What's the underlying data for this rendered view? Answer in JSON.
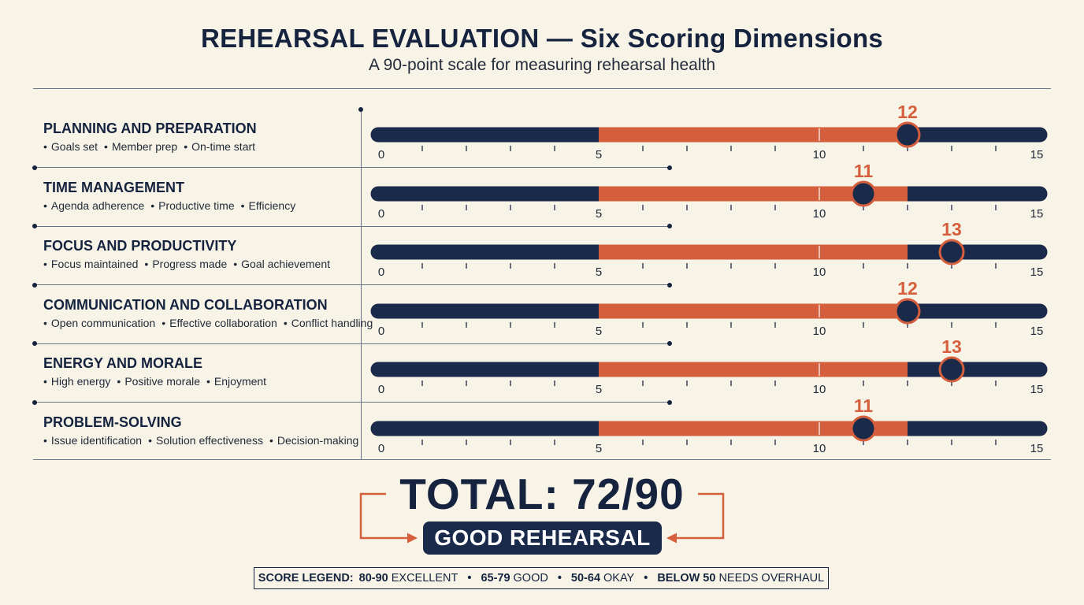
{
  "header": {
    "title": "REHEARSAL EVALUATION — Six Scoring Dimensions",
    "subtitle": "A 90-point scale for measuring rehearsal health"
  },
  "chart_data": {
    "type": "bar",
    "categories": [
      "PLANNING AND PREPARATION",
      "TIME MANAGEMENT",
      "FOCUS AND PRODUCTIVITY",
      "COMMUNICATION AND COLLABORATION",
      "ENERGY AND MORALE",
      "PROBLEM-SOLVING"
    ],
    "values": [
      12,
      11,
      13,
      12,
      13,
      11
    ],
    "xlim": [
      0,
      15
    ],
    "tick_labels": [
      "0",
      "5",
      "10",
      "15"
    ],
    "highlight_range": [
      5,
      12
    ],
    "colors": {
      "navy": "#1a2a4a",
      "orange": "#d55f3c",
      "background": "#f8f3e7"
    }
  },
  "dimensions": [
    {
      "name": "PLANNING AND PREPARATION",
      "score_label": "12",
      "subs": [
        "Goals set",
        "Member prep",
        "On-time start"
      ]
    },
    {
      "name": "TIME MANAGEMENT",
      "score_label": "11",
      "subs": [
        "Agenda adherence",
        "Productive time",
        "Efficiency"
      ]
    },
    {
      "name": "FOCUS AND PRODUCTIVITY",
      "score_label": "13",
      "subs": [
        "Focus maintained",
        "Progress made",
        "Goal achievement"
      ]
    },
    {
      "name": "COMMUNICATION AND COLLABORATION",
      "score_label": "12",
      "subs": [
        "Open communication",
        "Effective collaboration",
        "Conflict handling"
      ]
    },
    {
      "name": "ENERGY AND MORALE",
      "score_label": "13",
      "subs": [
        "High energy",
        "Positive morale",
        "Enjoyment"
      ]
    },
    {
      "name": "PROBLEM-SOLVING",
      "score_label": "11",
      "subs": [
        "Issue identification",
        "Solution effectiveness",
        "Decision-making"
      ]
    }
  ],
  "total": {
    "text": "TOTAL: 72/90",
    "rating": "GOOD REHEARSAL"
  },
  "legend": {
    "label": "SCORE LEGEND:",
    "items": [
      {
        "range": "80-90",
        "desc": "EXCELLENT"
      },
      {
        "range": "65-79",
        "desc": "GOOD"
      },
      {
        "range": "50-64",
        "desc": "OKAY"
      },
      {
        "range": "BELOW 50",
        "desc": "NEEDS OVERHAUL"
      }
    ]
  }
}
